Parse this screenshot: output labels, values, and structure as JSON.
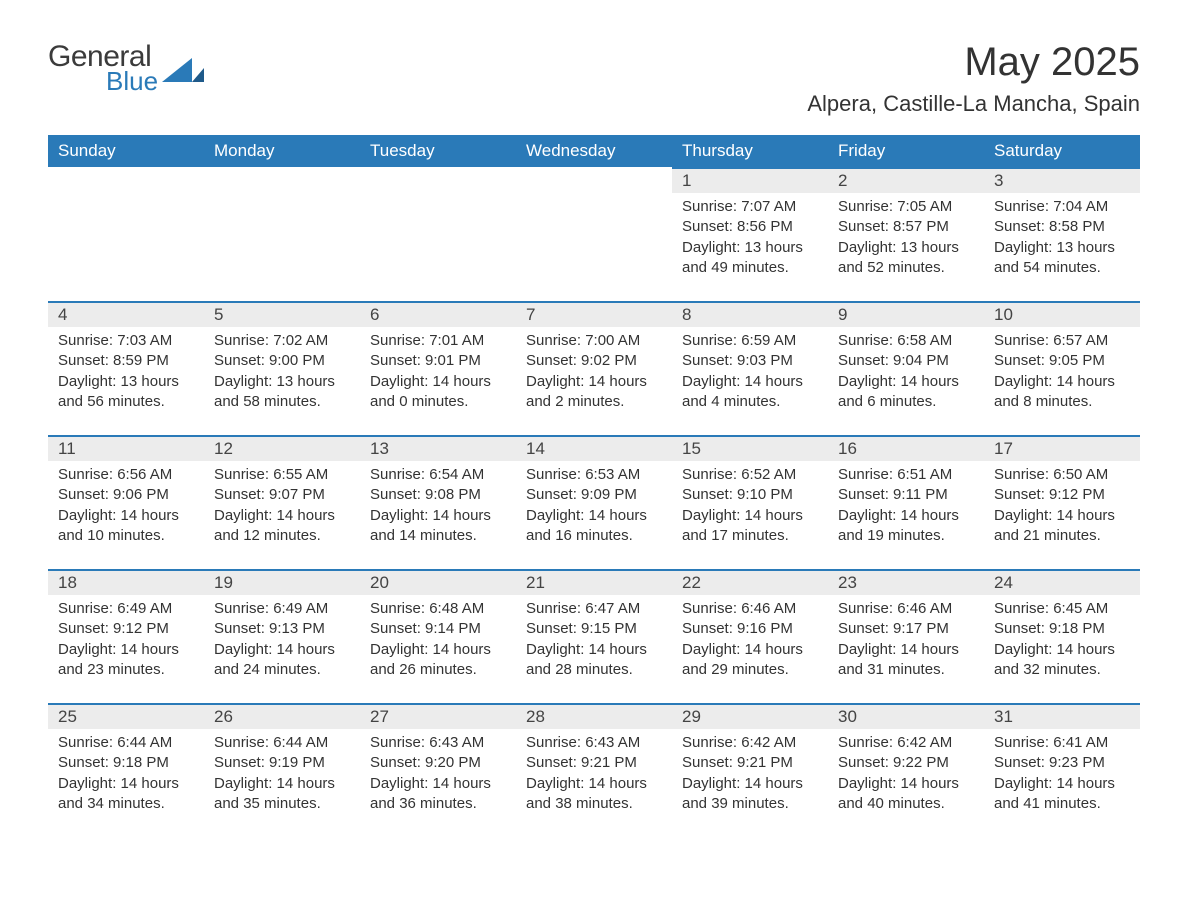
{
  "logo": {
    "general": "General",
    "blue": "Blue"
  },
  "title": "May 2025",
  "location": "Alpera, Castille-La Mancha, Spain",
  "columns": [
    "Sunday",
    "Monday",
    "Tuesday",
    "Wednesday",
    "Thursday",
    "Friday",
    "Saturday"
  ],
  "colors": {
    "header_bg": "#2a7ab8",
    "header_text": "#ffffff",
    "daynum_bg": "#ececec",
    "border_top": "#2a7ab8",
    "body_text": "#333333",
    "logo_blue": "#2a7ab8"
  },
  "weeks": [
    [
      null,
      null,
      null,
      null,
      {
        "n": "1",
        "sunrise": "7:07 AM",
        "sunset": "8:56 PM",
        "daylight": "13 hours and 49 minutes."
      },
      {
        "n": "2",
        "sunrise": "7:05 AM",
        "sunset": "8:57 PM",
        "daylight": "13 hours and 52 minutes."
      },
      {
        "n": "3",
        "sunrise": "7:04 AM",
        "sunset": "8:58 PM",
        "daylight": "13 hours and 54 minutes."
      }
    ],
    [
      {
        "n": "4",
        "sunrise": "7:03 AM",
        "sunset": "8:59 PM",
        "daylight": "13 hours and 56 minutes."
      },
      {
        "n": "5",
        "sunrise": "7:02 AM",
        "sunset": "9:00 PM",
        "daylight": "13 hours and 58 minutes."
      },
      {
        "n": "6",
        "sunrise": "7:01 AM",
        "sunset": "9:01 PM",
        "daylight": "14 hours and 0 minutes."
      },
      {
        "n": "7",
        "sunrise": "7:00 AM",
        "sunset": "9:02 PM",
        "daylight": "14 hours and 2 minutes."
      },
      {
        "n": "8",
        "sunrise": "6:59 AM",
        "sunset": "9:03 PM",
        "daylight": "14 hours and 4 minutes."
      },
      {
        "n": "9",
        "sunrise": "6:58 AM",
        "sunset": "9:04 PM",
        "daylight": "14 hours and 6 minutes."
      },
      {
        "n": "10",
        "sunrise": "6:57 AM",
        "sunset": "9:05 PM",
        "daylight": "14 hours and 8 minutes."
      }
    ],
    [
      {
        "n": "11",
        "sunrise": "6:56 AM",
        "sunset": "9:06 PM",
        "daylight": "14 hours and 10 minutes."
      },
      {
        "n": "12",
        "sunrise": "6:55 AM",
        "sunset": "9:07 PM",
        "daylight": "14 hours and 12 minutes."
      },
      {
        "n": "13",
        "sunrise": "6:54 AM",
        "sunset": "9:08 PM",
        "daylight": "14 hours and 14 minutes."
      },
      {
        "n": "14",
        "sunrise": "6:53 AM",
        "sunset": "9:09 PM",
        "daylight": "14 hours and 16 minutes."
      },
      {
        "n": "15",
        "sunrise": "6:52 AM",
        "sunset": "9:10 PM",
        "daylight": "14 hours and 17 minutes."
      },
      {
        "n": "16",
        "sunrise": "6:51 AM",
        "sunset": "9:11 PM",
        "daylight": "14 hours and 19 minutes."
      },
      {
        "n": "17",
        "sunrise": "6:50 AM",
        "sunset": "9:12 PM",
        "daylight": "14 hours and 21 minutes."
      }
    ],
    [
      {
        "n": "18",
        "sunrise": "6:49 AM",
        "sunset": "9:12 PM",
        "daylight": "14 hours and 23 minutes."
      },
      {
        "n": "19",
        "sunrise": "6:49 AM",
        "sunset": "9:13 PM",
        "daylight": "14 hours and 24 minutes."
      },
      {
        "n": "20",
        "sunrise": "6:48 AM",
        "sunset": "9:14 PM",
        "daylight": "14 hours and 26 minutes."
      },
      {
        "n": "21",
        "sunrise": "6:47 AM",
        "sunset": "9:15 PM",
        "daylight": "14 hours and 28 minutes."
      },
      {
        "n": "22",
        "sunrise": "6:46 AM",
        "sunset": "9:16 PM",
        "daylight": "14 hours and 29 minutes."
      },
      {
        "n": "23",
        "sunrise": "6:46 AM",
        "sunset": "9:17 PM",
        "daylight": "14 hours and 31 minutes."
      },
      {
        "n": "24",
        "sunrise": "6:45 AM",
        "sunset": "9:18 PM",
        "daylight": "14 hours and 32 minutes."
      }
    ],
    [
      {
        "n": "25",
        "sunrise": "6:44 AM",
        "sunset": "9:18 PM",
        "daylight": "14 hours and 34 minutes."
      },
      {
        "n": "26",
        "sunrise": "6:44 AM",
        "sunset": "9:19 PM",
        "daylight": "14 hours and 35 minutes."
      },
      {
        "n": "27",
        "sunrise": "6:43 AM",
        "sunset": "9:20 PM",
        "daylight": "14 hours and 36 minutes."
      },
      {
        "n": "28",
        "sunrise": "6:43 AM",
        "sunset": "9:21 PM",
        "daylight": "14 hours and 38 minutes."
      },
      {
        "n": "29",
        "sunrise": "6:42 AM",
        "sunset": "9:21 PM",
        "daylight": "14 hours and 39 minutes."
      },
      {
        "n": "30",
        "sunrise": "6:42 AM",
        "sunset": "9:22 PM",
        "daylight": "14 hours and 40 minutes."
      },
      {
        "n": "31",
        "sunrise": "6:41 AM",
        "sunset": "9:23 PM",
        "daylight": "14 hours and 41 minutes."
      }
    ]
  ],
  "labels": {
    "sunrise": "Sunrise: ",
    "sunset": "Sunset: ",
    "daylight": "Daylight: "
  }
}
